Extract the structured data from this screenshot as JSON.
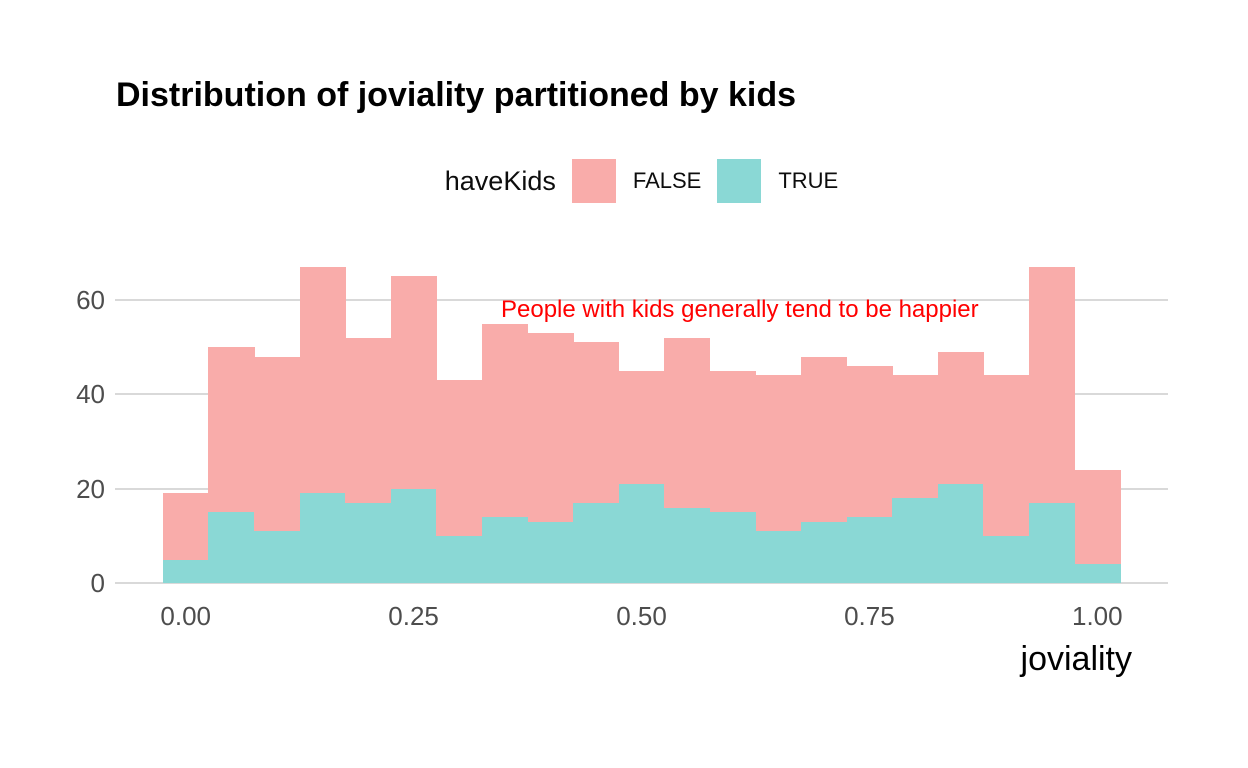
{
  "title": "Distribution of joviality partitioned by kids",
  "legend": {
    "title": "haveKids",
    "items": [
      {
        "label": "FALSE",
        "color": "#F9ACAA"
      },
      {
        "label": "TRUE",
        "color": "#8AD8D5"
      }
    ],
    "position": "top-center"
  },
  "annotation": {
    "text": "People with kids generally tend to be happier",
    "color": "#FF0000"
  },
  "axes": {
    "x_title": "joviality",
    "y_title": ""
  },
  "colors": {
    "background": "#FFFFFF",
    "gridline": "#D9D9D9",
    "axis_text": "#4D4D4D",
    "false_fill": "#F9ACAA",
    "true_fill": "#8AD8D5",
    "annotation": "#FF0000",
    "title_text": "#000000"
  },
  "chart_data": {
    "type": "bar",
    "subtype": "stacked-histogram",
    "title": "Distribution of joviality partitioned by kids",
    "xlabel": "joviality",
    "ylabel": "",
    "bin_centers": [
      0.0,
      0.05,
      0.1,
      0.15,
      0.2,
      0.25,
      0.3,
      0.35,
      0.4,
      0.45,
      0.5,
      0.55,
      0.6,
      0.65,
      0.7,
      0.75,
      0.8,
      0.85,
      0.9,
      0.95,
      1.0
    ],
    "bin_width": 0.05,
    "bin_start": -0.025,
    "series": [
      {
        "name": "TRUE",
        "color": "#8AD8D5",
        "stack_order": "bottom",
        "values": [
          5,
          15,
          11,
          19,
          17,
          20,
          10,
          14,
          13,
          17,
          21,
          16,
          15,
          11,
          13,
          14,
          18,
          21,
          10,
          17,
          4
        ]
      },
      {
        "name": "FALSE",
        "color": "#F9ACAA",
        "stack_order": "top",
        "values": [
          14,
          35,
          37,
          48,
          35,
          45,
          33,
          41,
          40,
          34,
          24,
          36,
          30,
          33,
          35,
          32,
          26,
          28,
          34,
          50,
          20
        ]
      }
    ],
    "stacked_totals": [
      19,
      50,
      48,
      67,
      52,
      65,
      43,
      55,
      53,
      51,
      45,
      52,
      45,
      44,
      48,
      46,
      44,
      49,
      44,
      67,
      24
    ],
    "x_ticks": [
      "0.00",
      "0.25",
      "0.50",
      "0.75",
      "1.00"
    ],
    "x_tick_values": [
      0.0,
      0.25,
      0.5,
      0.75,
      1.0
    ],
    "y_ticks": [
      0,
      20,
      40,
      60
    ],
    "xlim": [
      -0.0775,
      1.0775
    ],
    "ylim": [
      0,
      71
    ],
    "grid": "horizontal-major-only",
    "legend_position": "top-center"
  }
}
